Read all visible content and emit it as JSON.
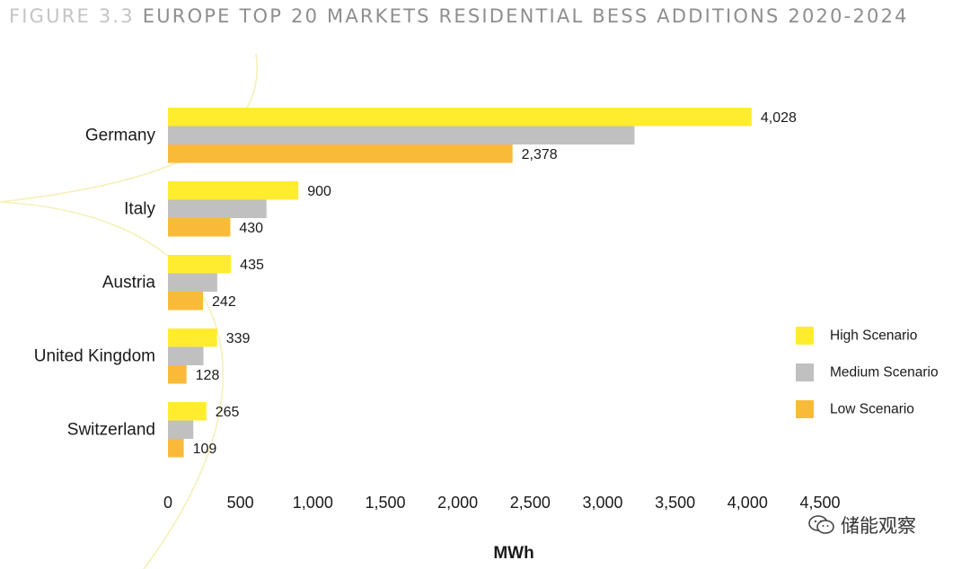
{
  "figure": {
    "prefix": "FIGURE 3.3",
    "title": "EUROPE TOP 20 MARKETS RESIDENTIAL BESS ADDITIONS 2020-2024"
  },
  "watermark": {
    "text": "储能观察",
    "icon": "wechat-icon"
  },
  "colors": {
    "high": "#FFEC2E",
    "medium": "#C0C0C0",
    "low": "#F9BA3A",
    "deco": "#F5F0B8"
  },
  "chart_data": {
    "type": "bar",
    "orientation": "horizontal",
    "categories": [
      "Germany",
      "Italy",
      "Austria",
      "United Kingdom",
      "Switzerland"
    ],
    "series": [
      {
        "name": "High Scenario",
        "values": [
          4028,
          900,
          435,
          339,
          265
        ],
        "labels": [
          "4,028",
          "900",
          "435",
          "339",
          "265"
        ]
      },
      {
        "name": "Medium Scenario",
        "values": [
          3220,
          680,
          340,
          245,
          175
        ],
        "labels": [
          "",
          "",
          "",
          "",
          ""
        ]
      },
      {
        "name": "Low Scenario",
        "values": [
          2378,
          430,
          242,
          128,
          109
        ],
        "labels": [
          "2,378",
          "430",
          "242",
          "128",
          "109"
        ]
      }
    ],
    "xlabel": "MWh",
    "xlim": [
      0,
      4500
    ],
    "xticks": [
      0,
      500,
      1000,
      1500,
      2000,
      2500,
      3000,
      3500,
      4000,
      4500
    ],
    "xtick_labels": [
      "0",
      "500",
      "1,000",
      "1,500",
      "2,000",
      "2,500",
      "3,000",
      "3,500",
      "4,000",
      "4,500"
    ],
    "grid": false,
    "legend_position": "right"
  }
}
